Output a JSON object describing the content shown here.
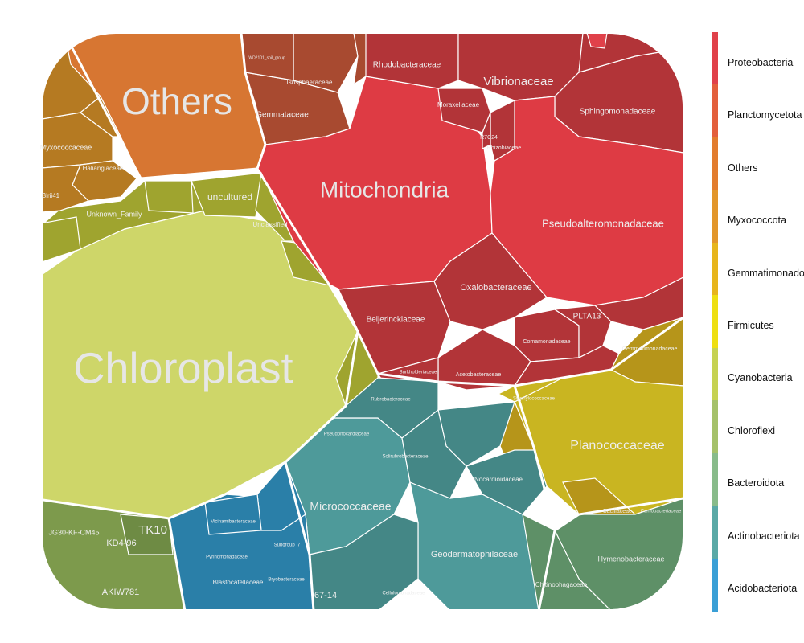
{
  "chart_data": {
    "type": "voronoi-treemap",
    "title": "",
    "legend": {
      "placement": "right",
      "entries": [
        {
          "name": "Proteobacteria",
          "color": "#e0414a"
        },
        {
          "name": "Planctomycetota",
          "color": "#e35f3c"
        },
        {
          "name": "Others",
          "color": "#e27c2e"
        },
        {
          "name": "Myxococcota",
          "color": "#e2962a"
        },
        {
          "name": "Gemmatimonadota",
          "color": "#e7b51c"
        },
        {
          "name": "Firmicutes",
          "color": "#eedf11"
        },
        {
          "name": "Cyanobacteria",
          "color": "#c6d252"
        },
        {
          "name": "Chloroflexi",
          "color": "#a5c16a"
        },
        {
          "name": "Bacteroidota",
          "color": "#88bb8a"
        },
        {
          "name": "Actinobacteriota",
          "color": "#5aa9a6"
        },
        {
          "name": "Acidobacteriota",
          "color": "#3a9fd6"
        }
      ]
    },
    "groups": [
      {
        "name": "Chloroplast",
        "color": "#ced669"
      },
      {
        "name": "Mitochondria",
        "color": "#de3b44"
      },
      {
        "name": "Others",
        "color": "#d77632"
      },
      {
        "name": "Micrococcaceae",
        "color": "#4e9a9a"
      },
      {
        "name": "Planococcaceae",
        "color": "#c9b521"
      }
    ],
    "cell_labels": [
      "Rhodobacteraceae",
      "Vibrionaceae",
      "Moraxellaceae",
      "Sphingomonadaceae",
      "R7C24",
      "Rhizobiaceae",
      "Pseudoalteromonadaceae",
      "Oxalobacteraceae",
      "Beijerinckiaceae",
      "PLTA13",
      "Comamonadaceae",
      "Acetobacteraceae",
      "Gemmatimonadaceae",
      "uncultured",
      "Unknown_Family",
      "Unclassified",
      "Myxococcaceae",
      "Haliangiaceae",
      "Blrii41",
      "Gemmataceae",
      "Isosphaeraceae",
      "WD2101_soil_group",
      "Geodermatophilaceae",
      "Nocardioidaceae",
      "Blastocatellaceae",
      "Hymenobacteraceae",
      "Chitinophagaceae",
      "Bacillaceae",
      "JG30-KF-CM45",
      "KD4-96",
      "TK10",
      "AKIW781",
      "67-14",
      "Subgroup_7",
      "Burkholderiaceae",
      "Rubrobacteraceae",
      "Pseudonocardiaceae",
      "Solirubrobacteraceae",
      "Cellulomonadaceae",
      "Vicinamibacteraceae",
      "Pyrinomonadaceae",
      "Bryobacteraceae",
      "Staphylococcaceae",
      "Carnobacteriaceae"
    ]
  }
}
